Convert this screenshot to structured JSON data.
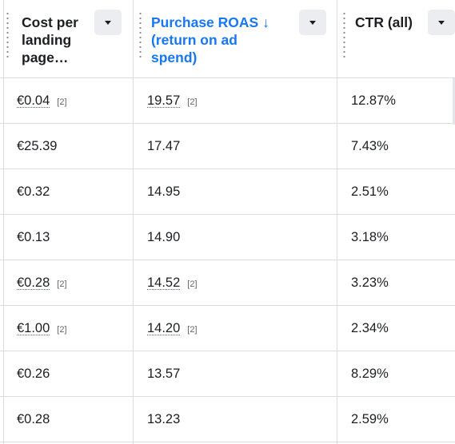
{
  "columns": [
    {
      "title_lines": [
        "Cost per",
        "landing",
        "page…"
      ]
    },
    {
      "title_lines": [
        "Purchase ROAS ↓",
        "(return on ad",
        "spend)"
      ]
    },
    {
      "title_lines": [
        "CTR (all)"
      ]
    }
  ],
  "rows": [
    {
      "cost": "€0.04",
      "cost_note": "[2]",
      "roas": "19.57",
      "roas_note": "[2]",
      "ctr": "12.87%"
    },
    {
      "cost": "€25.39",
      "cost_note": "",
      "roas": "17.47",
      "roas_note": "",
      "ctr": "7.43%"
    },
    {
      "cost": "€0.32",
      "cost_note": "",
      "roas": "14.95",
      "roas_note": "",
      "ctr": "2.51%"
    },
    {
      "cost": "€0.13",
      "cost_note": "",
      "roas": "14.90",
      "roas_note": "",
      "ctr": "3.18%"
    },
    {
      "cost": "€0.28",
      "cost_note": "[2]",
      "roas": "14.52",
      "roas_note": "[2]",
      "ctr": "3.23%"
    },
    {
      "cost": "€1.00",
      "cost_note": "[2]",
      "roas": "14.20",
      "roas_note": "[2]",
      "ctr": "2.34%"
    },
    {
      "cost": "€0.26",
      "cost_note": "",
      "roas": "13.57",
      "roas_note": "",
      "ctr": "8.29%"
    },
    {
      "cost": "€0.28",
      "cost_note": "",
      "roas": "13.23",
      "roas_note": "",
      "ctr": "2.59%"
    }
  ],
  "icons": {
    "sort": "dropdown-triangle-icon",
    "grip": "drag-grip-icon"
  },
  "colors": {
    "active_header": "#1877f2",
    "text": "#1c1e21",
    "border": "#dadde1",
    "button_bg": "#ebedf0"
  }
}
